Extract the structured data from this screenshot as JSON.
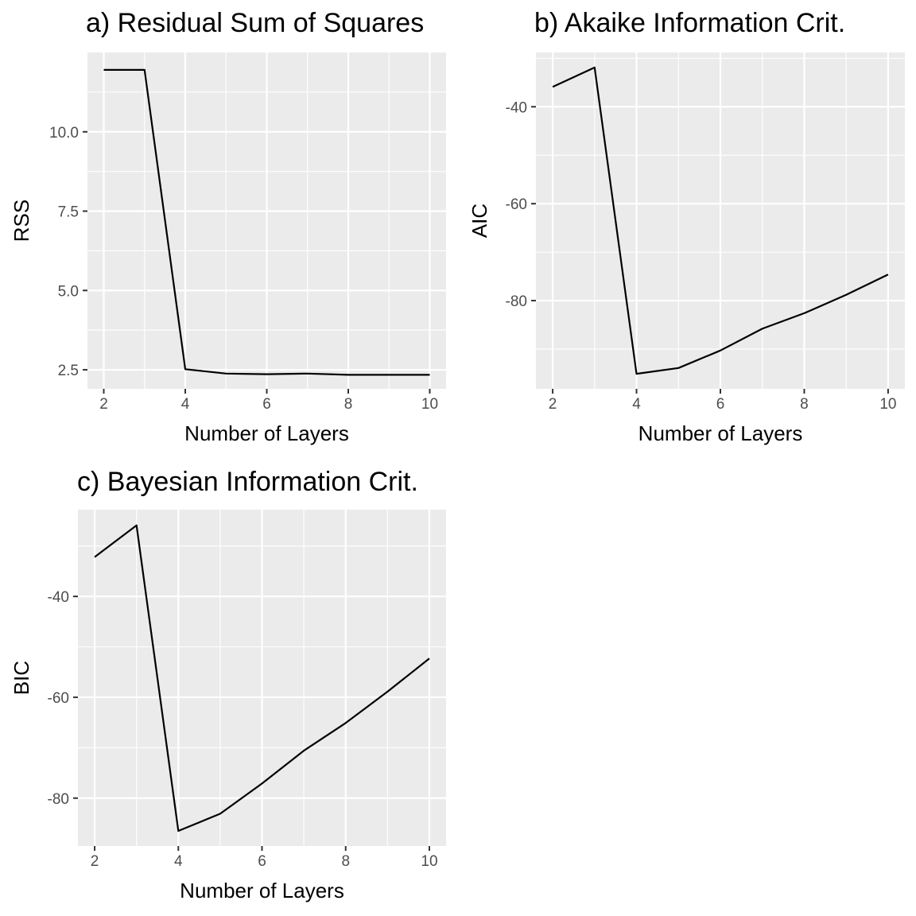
{
  "chart_data": [
    {
      "type": "line",
      "title": "a) Residual Sum of Squares",
      "xlabel": "Number of Layers",
      "ylabel": "RSS",
      "x": [
        2,
        3,
        4,
        5,
        6,
        7,
        8,
        9,
        10
      ],
      "values": [
        11.95,
        11.95,
        2.52,
        2.38,
        2.36,
        2.38,
        2.34,
        2.34,
        2.34
      ],
      "xlim": [
        1.6,
        10.4
      ],
      "ylim": [
        1.9,
        12.5
      ],
      "xticks": [
        2,
        4,
        6,
        8,
        10
      ],
      "xtick_labels": [
        "2",
        "4",
        "6",
        "8",
        "10"
      ],
      "yticks": [
        2.5,
        5.0,
        7.5,
        10.0
      ],
      "ytick_labels": [
        "2.5",
        "5.0",
        "7.5",
        "10.0"
      ],
      "grid": true,
      "colors": {
        "panel": "#ebebeb",
        "grid": "#ffffff",
        "line": "#000000"
      }
    },
    {
      "type": "line",
      "title": "b) Akaike Information Crit.",
      "xlabel": "Number of Layers",
      "ylabel": "AIC",
      "x": [
        2,
        3,
        4,
        5,
        6,
        7,
        8,
        9,
        10
      ],
      "values": [
        -35.9,
        -31.9,
        -95.1,
        -93.9,
        -90.3,
        -85.8,
        -82.6,
        -78.8,
        -74.6
      ],
      "xlim": [
        1.6,
        10.4
      ],
      "ylim": [
        -98.2,
        -28.8
      ],
      "xticks": [
        2,
        4,
        6,
        8,
        10
      ],
      "xtick_labels": [
        "2",
        "4",
        "6",
        "8",
        "10"
      ],
      "yticks": [
        -80,
        -60,
        -40
      ],
      "ytick_labels": [
        "-80",
        "-60",
        "-40"
      ],
      "grid": true,
      "colors": {
        "panel": "#ebebeb",
        "grid": "#ffffff",
        "line": "#000000"
      }
    },
    {
      "type": "line",
      "title": "c) Bayesian Information Crit.",
      "xlabel": "Number of Layers",
      "ylabel": "BIC",
      "x": [
        2,
        3,
        4,
        5,
        6,
        7,
        8,
        9,
        10
      ],
      "values": [
        -32.2,
        -25.9,
        -86.5,
        -83.1,
        -77.1,
        -70.6,
        -65.1,
        -58.9,
        -52.3
      ],
      "xlim": [
        1.6,
        10.4
      ],
      "ylim": [
        -89.5,
        -22.8
      ],
      "xticks": [
        2,
        4,
        6,
        8,
        10
      ],
      "xtick_labels": [
        "2",
        "4",
        "6",
        "8",
        "10"
      ],
      "yticks": [
        -80,
        -60,
        -40
      ],
      "ytick_labels": [
        "-80",
        "-60",
        "-40"
      ],
      "grid": true,
      "colors": {
        "panel": "#ebebeb",
        "grid": "#ffffff",
        "line": "#000000"
      }
    }
  ]
}
